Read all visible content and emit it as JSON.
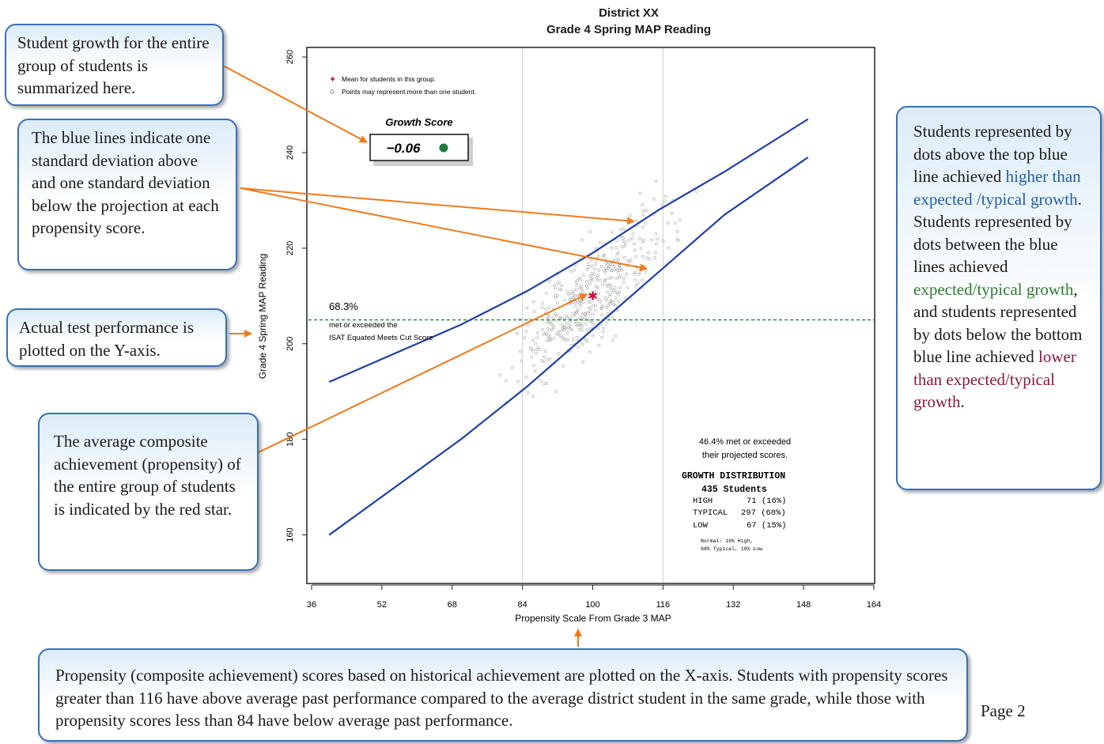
{
  "chart_data": {
    "type": "scatter",
    "title": "District XX",
    "subtitle": "Grade 4 Spring MAP Reading",
    "xlabel": "Propensity Scale From Grade 3 MAP",
    "ylabel": "Grade 4 Spring MAP Reading",
    "xlim": [
      36,
      164
    ],
    "ylim": [
      150,
      262
    ],
    "x_ticks": [
      "36",
      "52",
      "68",
      "84",
      "100",
      "116",
      "132",
      "148",
      "164"
    ],
    "y_ticks": [
      "160",
      "180",
      "200",
      "220",
      "240",
      "260"
    ],
    "vertical_gridlines": [
      84,
      116
    ],
    "legend": {
      "mean_label": "Mean for students in this group.",
      "points_label": "Points may represent more than one student."
    },
    "growth_score": {
      "label": "Growth Score",
      "value": "−0.06",
      "status_color": "#1e7a3e"
    },
    "cut_line": {
      "y": 205,
      "percent": "68.3%",
      "line1": "met or exceeded the",
      "line2": "ISAT Equated Meets Cut Score",
      "color": "#1e8a2e"
    },
    "mean_point": {
      "x": 100,
      "y": 210,
      "color": "#c0143c"
    },
    "upper_line": [
      [
        40,
        192
      ],
      [
        55,
        198
      ],
      [
        70,
        204
      ],
      [
        85,
        211
      ],
      [
        100,
        219
      ],
      [
        115,
        228
      ],
      [
        130,
        236
      ],
      [
        149,
        247
      ]
    ],
    "lower_line": [
      [
        40,
        160
      ],
      [
        55,
        170
      ],
      [
        70,
        180
      ],
      [
        85,
        191
      ],
      [
        100,
        203
      ],
      [
        115,
        215
      ],
      [
        130,
        227
      ],
      [
        149,
        239
      ]
    ],
    "line_color": "#1f3fa5",
    "met_projected": [
      "46.4% met or exceeded",
      "their projected scores."
    ],
    "distribution": {
      "title": "GROWTH DISTRIBUTION",
      "students": "435  Students",
      "rows": [
        {
          "label": "HIGH",
          "value": "71 (16%)"
        },
        {
          "label": "TYPICAL",
          "value": "297 (68%)"
        },
        {
          "label": "LOW",
          "value": "67 (15%)"
        }
      ],
      "note1": "Normal: 16% High,",
      "note2": "68% Typical, 16% Low"
    },
    "point_seed": 7,
    "point_count": 435
  },
  "callouts": {
    "growth_summary": "Student growth for the entire group of students is summarized here.",
    "blue_lines": "The blue lines indicate one standard deviation above and one standard deviation below the projection at each propensity score.",
    "y_axis": "Actual test performance is plotted on the Y-axis.",
    "red_star": "The average composite achievement (propensity) of the entire group of students is indicated by the red star.",
    "right_1": "Students represented by dots above the top blue line achieved ",
    "right_high": "higher than expected /typical growth",
    "right_2": ". Students represented by dots between the blue lines achieved ",
    "right_typical": "expected/typical growth",
    "right_3": ", and students represented by dots below the bottom blue line achieved ",
    "right_low": "lower than expected/typical growth",
    "right_4": ".",
    "x_axis": "Propensity (composite achievement)  scores based on historical achievement are plotted on the X-axis. Students with propensity scores greater than 116 have above average past performance compared to the average district student in the same grade, while those with propensity scores less than 84 have below average past performance."
  },
  "page_label": "Page 2",
  "arrow_color": "#f07a1a"
}
